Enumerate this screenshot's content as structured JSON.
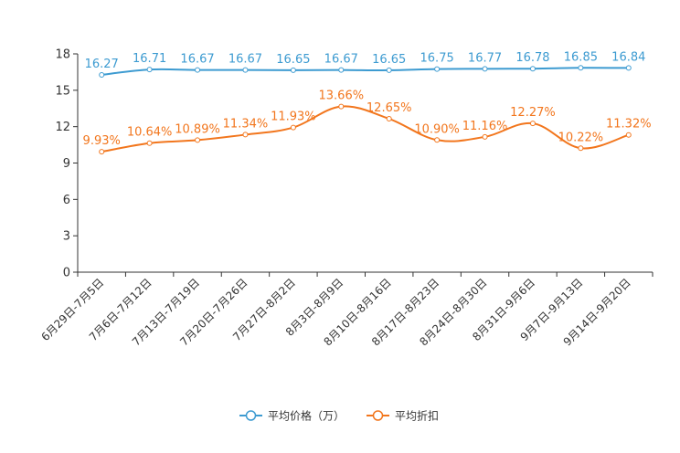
{
  "chart_data": {
    "type": "line",
    "categories": [
      "6月29日-7月5日",
      "7月6日-7月12日",
      "7月13日-7月19日",
      "7月20日-7月26日",
      "7月27日-8月2日",
      "8月3日-8月9日",
      "8月10日-8月16日",
      "8月17日-8月23日",
      "8月24日-8月30日",
      "8月31日-9月6日",
      "9月7日-9月13日",
      "9月14日-9月20日"
    ],
    "series": [
      {
        "name": "平均价格（万）",
        "color": "#3d9bd1",
        "values": [
          16.27,
          16.71,
          16.67,
          16.67,
          16.65,
          16.67,
          16.65,
          16.75,
          16.77,
          16.78,
          16.85,
          16.84
        ],
        "labels": [
          "16.27",
          "16.71",
          "16.67",
          "16.67",
          "16.65",
          "16.67",
          "16.65",
          "16.75",
          "16.77",
          "16.78",
          "16.85",
          "16.84"
        ]
      },
      {
        "name": "平均折扣",
        "color": "#f2761d",
        "values": [
          9.93,
          10.64,
          10.89,
          11.34,
          11.93,
          13.66,
          12.65,
          10.9,
          11.16,
          12.27,
          10.22,
          11.32
        ],
        "labels": [
          "9.93%",
          "10.64%",
          "10.89%",
          "11.34%",
          "11.93%",
          "13.66%",
          "12.65%",
          "10.90%",
          "11.16%",
          "12.27%",
          "10.22%",
          "11.32%"
        ]
      }
    ],
    "ylim": [
      0,
      18
    ],
    "yticks": [
      "0",
      "3",
      "6",
      "9",
      "12",
      "15",
      "18"
    ],
    "grid": false,
    "legend_position": "bottom",
    "title": "",
    "xlabel": "",
    "ylabel": ""
  }
}
